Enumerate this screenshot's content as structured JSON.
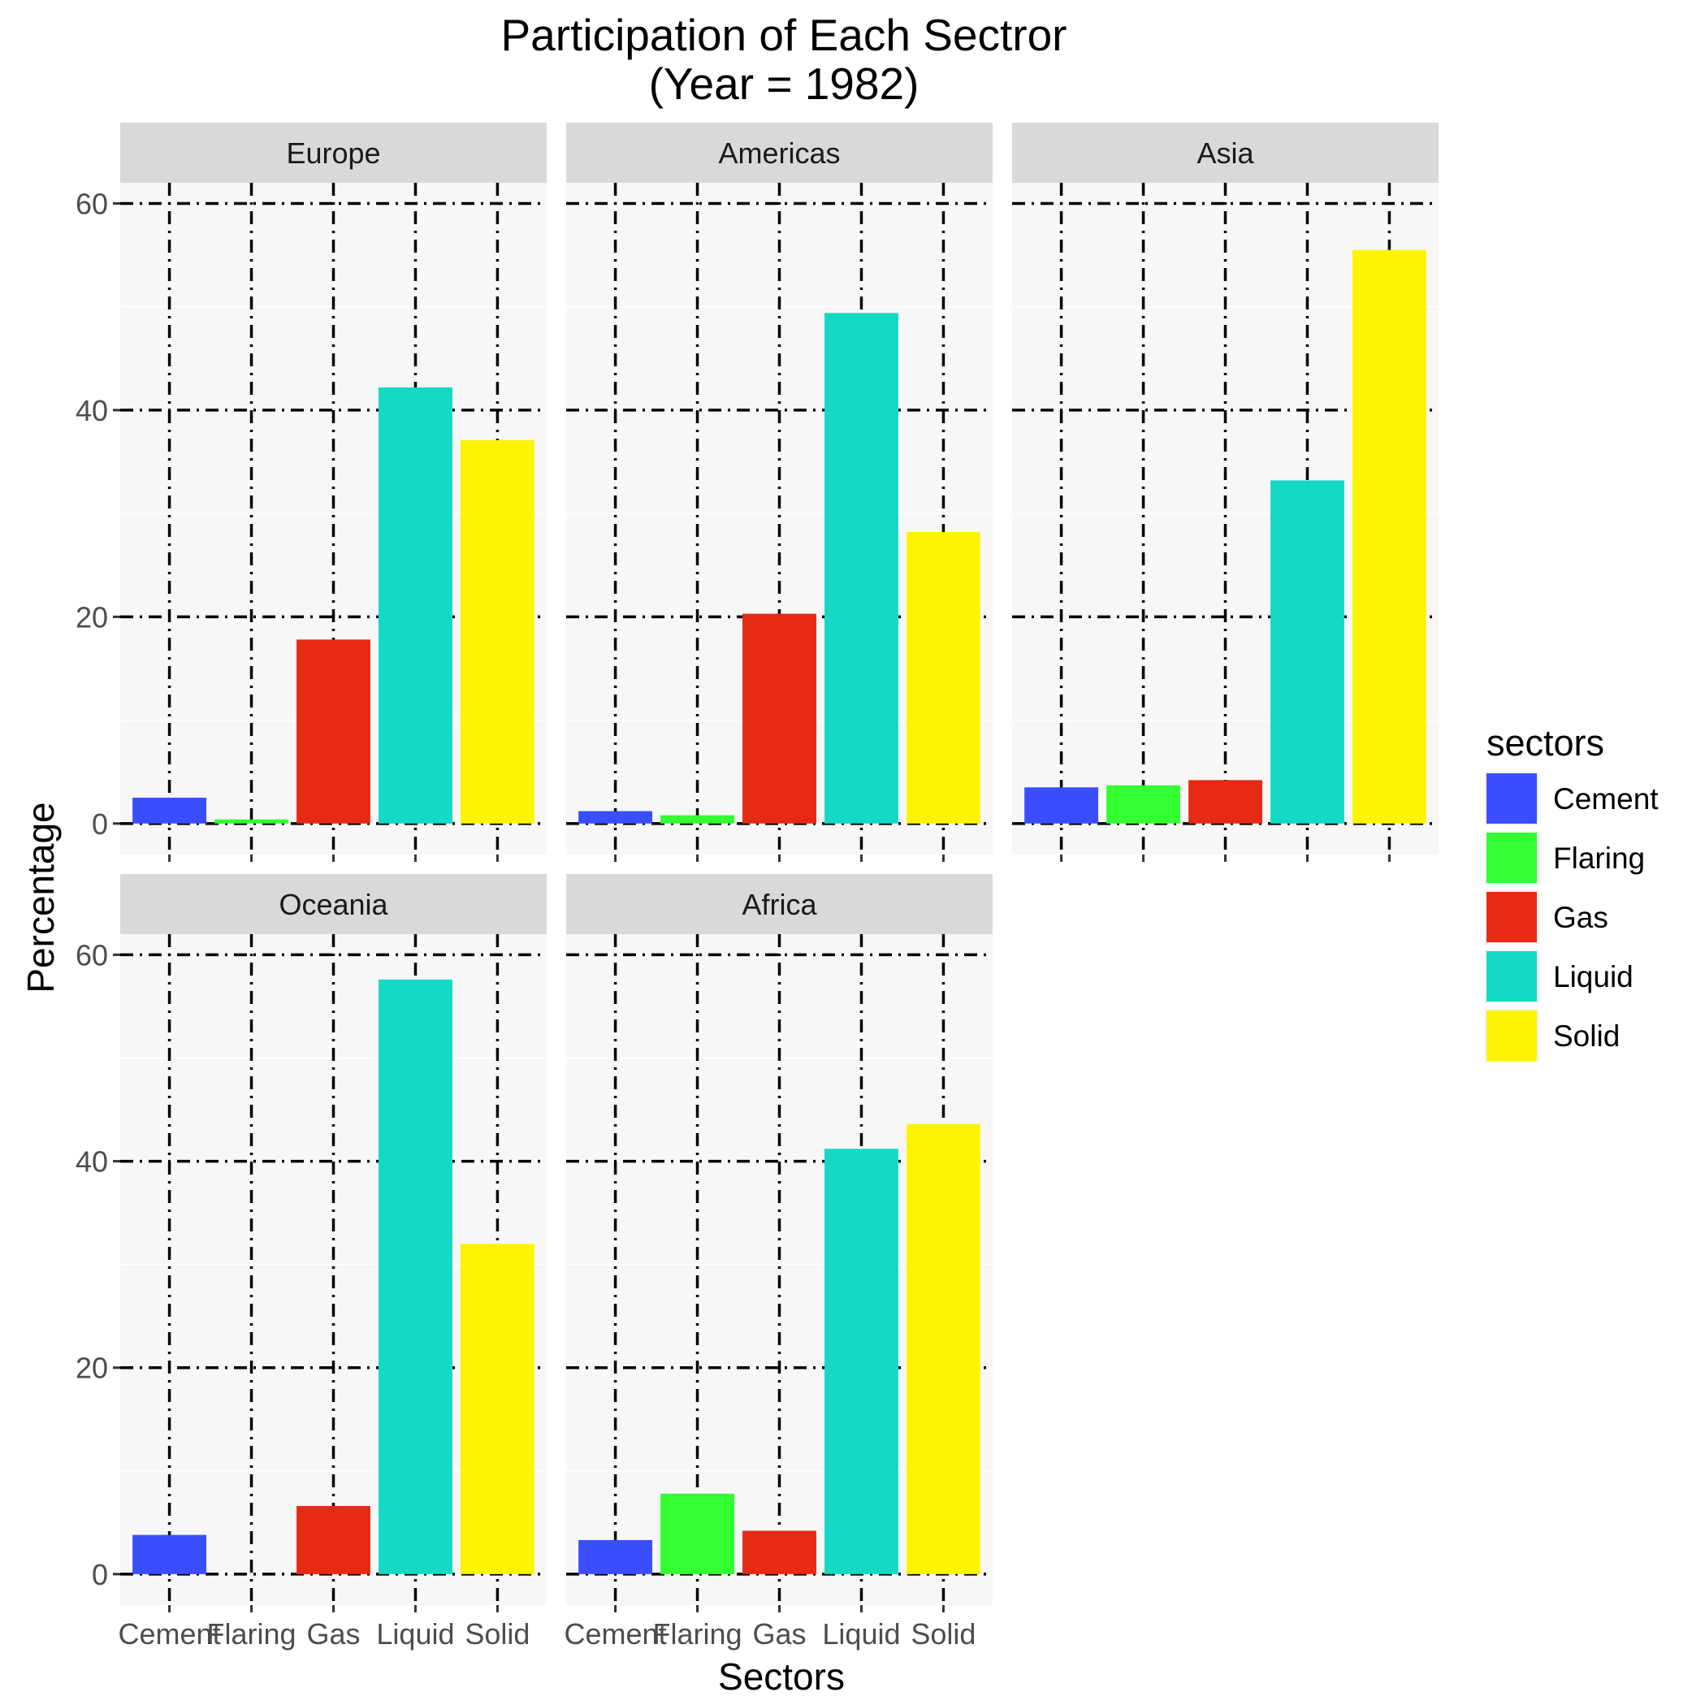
{
  "chart_data": {
    "type": "bar",
    "title": "Participation of Each Sectror",
    "subtitle": "(Year = 1982)",
    "xlabel": "Sectors",
    "ylabel": "Percentage",
    "ylim": [
      -3,
      62
    ],
    "yticks": [
      0,
      20,
      40,
      60
    ],
    "grid": true,
    "legend_position": "right",
    "legend_title": "sectors",
    "categories": [
      "Cement",
      "Flaring",
      "Gas",
      "Liquid",
      "Solid"
    ],
    "colors": {
      "Cement": "#3a4eff",
      "Flaring": "#33ff33",
      "Gas": "#e62a14",
      "Liquid": "#14d9c4",
      "Solid": "#fdf404"
    },
    "facets": [
      {
        "name": "Europe",
        "values": [
          2.5,
          0.4,
          17.8,
          42.2,
          37.1
        ]
      },
      {
        "name": "Americas",
        "values": [
          1.2,
          0.8,
          20.3,
          49.4,
          28.2
        ]
      },
      {
        "name": "Asia",
        "values": [
          3.5,
          3.7,
          4.2,
          33.2,
          55.5
        ]
      },
      {
        "name": "Oceania",
        "values": [
          3.8,
          0.0,
          6.6,
          57.6,
          32.0
        ]
      },
      {
        "name": "Africa",
        "values": [
          3.3,
          7.8,
          4.2,
          41.2,
          43.6
        ]
      }
    ]
  }
}
